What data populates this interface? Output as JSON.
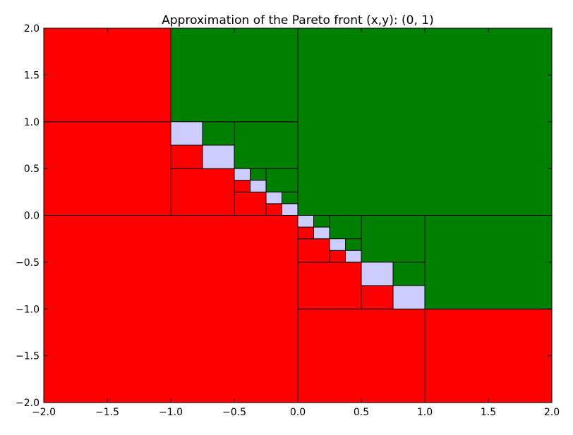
{
  "chart_data": {
    "type": "heatmap",
    "title": "Approximation of the Pareto front (x,y): (0, 1)",
    "xlabel": "",
    "ylabel": "",
    "xlim": [
      -2.0,
      2.0
    ],
    "ylim": [
      -2.0,
      2.0
    ],
    "x_ticks": [
      "−2.0",
      "−1.5",
      "−1.0",
      "−0.5",
      "0.0",
      "0.5",
      "1.0",
      "1.5",
      "2.0"
    ],
    "y_ticks": [
      "−2.0",
      "−1.5",
      "−1.0",
      "−0.5",
      "0.0",
      "0.5",
      "1.0",
      "1.5",
      "2.0"
    ],
    "x_tick_values": [
      -2.0,
      -1.5,
      -1.0,
      -0.5,
      0.0,
      0.5,
      1.0,
      1.5,
      2.0
    ],
    "y_tick_values": [
      -2.0,
      -1.5,
      -1.0,
      -0.5,
      0.0,
      0.5,
      1.0,
      1.5,
      2.0
    ],
    "grid": false,
    "colors": {
      "red": "#ff0000",
      "green": "#008000",
      "lavender": "#ccccff",
      "edge": "#000000"
    },
    "boxes": [
      {
        "x0": -2.0,
        "x1": -1.0,
        "y0": 1.0,
        "y1": 2.0,
        "color": "red"
      },
      {
        "x0": -2.0,
        "x1": -1.0,
        "y0": 0.0,
        "y1": 1.0,
        "color": "red"
      },
      {
        "x0": -2.0,
        "x1": 0.0,
        "y0": -2.0,
        "y1": 0.0,
        "color": "red"
      },
      {
        "x0": 0.0,
        "x1": 1.0,
        "y0": -2.0,
        "y1": -1.0,
        "color": "red"
      },
      {
        "x0": 1.0,
        "x1": 2.0,
        "y0": -2.0,
        "y1": -1.0,
        "color": "red"
      },
      {
        "x0": -1.0,
        "x1": -0.5,
        "y0": 0.0,
        "y1": 0.5,
        "color": "red"
      },
      {
        "x0": 0.0,
        "x1": 0.5,
        "y0": -1.0,
        "y1": -0.5,
        "color": "red"
      },
      {
        "x0": -1.0,
        "x1": -0.75,
        "y0": 0.5,
        "y1": 0.75,
        "color": "red"
      },
      {
        "x0": -0.5,
        "x1": -0.25,
        "y0": 0.0,
        "y1": 0.25,
        "color": "red"
      },
      {
        "x0": 0.0,
        "x1": 0.25,
        "y0": -0.5,
        "y1": -0.25,
        "color": "red"
      },
      {
        "x0": 0.5,
        "x1": 0.75,
        "y0": -1.0,
        "y1": -0.75,
        "color": "red"
      },
      {
        "x0": -0.5,
        "x1": -0.375,
        "y0": 0.25,
        "y1": 0.375,
        "color": "red"
      },
      {
        "x0": -0.25,
        "x1": -0.125,
        "y0": 0.0,
        "y1": 0.125,
        "color": "red"
      },
      {
        "x0": 0.0,
        "x1": 0.125,
        "y0": -0.25,
        "y1": -0.125,
        "color": "red"
      },
      {
        "x0": 0.25,
        "x1": 0.375,
        "y0": -0.5,
        "y1": -0.375,
        "color": "red"
      },
      {
        "x0": -1.0,
        "x1": 0.0,
        "y0": 1.0,
        "y1": 2.0,
        "color": "green"
      },
      {
        "x0": 0.0,
        "x1": 2.0,
        "y0": 0.0,
        "y1": 2.0,
        "color": "green"
      },
      {
        "x0": 1.0,
        "x1": 2.0,
        "y0": -1.0,
        "y1": 0.0,
        "color": "green"
      },
      {
        "x0": -0.5,
        "x1": 0.0,
        "y0": 0.5,
        "y1": 1.0,
        "color": "green"
      },
      {
        "x0": 0.5,
        "x1": 1.0,
        "y0": -0.5,
        "y1": 0.0,
        "color": "green"
      },
      {
        "x0": -0.75,
        "x1": -0.5,
        "y0": 0.75,
        "y1": 1.0,
        "color": "green"
      },
      {
        "x0": -0.25,
        "x1": 0.0,
        "y0": 0.25,
        "y1": 0.5,
        "color": "green"
      },
      {
        "x0": 0.25,
        "x1": 0.5,
        "y0": -0.25,
        "y1": 0.0,
        "color": "green"
      },
      {
        "x0": 0.75,
        "x1": 1.0,
        "y0": -0.75,
        "y1": -0.5,
        "color": "green"
      },
      {
        "x0": -0.375,
        "x1": -0.25,
        "y0": 0.375,
        "y1": 0.5,
        "color": "green"
      },
      {
        "x0": -0.125,
        "x1": 0.0,
        "y0": 0.125,
        "y1": 0.25,
        "color": "green"
      },
      {
        "x0": 0.125,
        "x1": 0.25,
        "y0": -0.125,
        "y1": 0.0,
        "color": "green"
      },
      {
        "x0": 0.375,
        "x1": 0.5,
        "y0": -0.375,
        "y1": -0.25,
        "color": "green"
      },
      {
        "x0": -1.0,
        "x1": -0.75,
        "y0": 0.75,
        "y1": 1.0,
        "color": "lavender"
      },
      {
        "x0": -0.75,
        "x1": -0.5,
        "y0": 0.5,
        "y1": 0.75,
        "color": "lavender"
      },
      {
        "x0": -0.5,
        "x1": -0.375,
        "y0": 0.375,
        "y1": 0.5,
        "color": "lavender"
      },
      {
        "x0": -0.375,
        "x1": -0.25,
        "y0": 0.25,
        "y1": 0.375,
        "color": "lavender"
      },
      {
        "x0": -0.25,
        "x1": -0.125,
        "y0": 0.125,
        "y1": 0.25,
        "color": "lavender"
      },
      {
        "x0": -0.125,
        "x1": 0.0,
        "y0": 0.0,
        "y1": 0.125,
        "color": "lavender"
      },
      {
        "x0": 0.0,
        "x1": 0.125,
        "y0": -0.125,
        "y1": 0.0,
        "color": "lavender"
      },
      {
        "x0": 0.125,
        "x1": 0.25,
        "y0": -0.25,
        "y1": -0.125,
        "color": "lavender"
      },
      {
        "x0": 0.25,
        "x1": 0.375,
        "y0": -0.375,
        "y1": -0.25,
        "color": "lavender"
      },
      {
        "x0": 0.375,
        "x1": 0.5,
        "y0": -0.5,
        "y1": -0.375,
        "color": "lavender"
      },
      {
        "x0": 0.5,
        "x1": 0.75,
        "y0": -0.75,
        "y1": -0.5,
        "color": "lavender"
      },
      {
        "x0": 0.75,
        "x1": 1.0,
        "y0": -1.0,
        "y1": -0.75,
        "color": "lavender"
      }
    ]
  }
}
